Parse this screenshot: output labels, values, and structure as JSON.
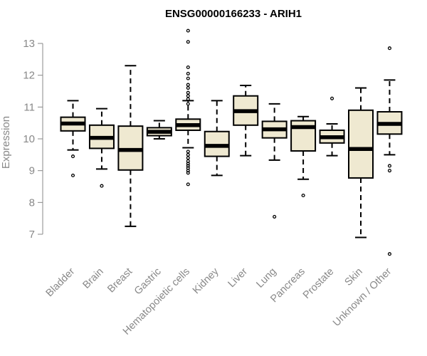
{
  "chart_data": {
    "type": "box",
    "title": "ENSG00000166233 - ARIH1",
    "xlabel": "",
    "ylabel": "Expression",
    "ylim": [
      6.6,
      13.6
    ],
    "yticks": [
      7,
      8,
      9,
      10,
      11,
      12,
      13
    ],
    "grid": false,
    "box_color": "#efe9d1",
    "categories": [
      "Bladder",
      "Brain",
      "Breast",
      "Gastric",
      "Hematopoietic cells",
      "Kidney",
      "Liver",
      "Lung",
      "Pancreas",
      "Prostate",
      "Skin",
      "Unknown / Other"
    ],
    "boxes": [
      {
        "name": "Bladder",
        "whisker_low": 9.65,
        "q1": 10.25,
        "median": 10.48,
        "q3": 10.68,
        "whisker_high": 11.2,
        "outliers": [
          9.45,
          8.85
        ]
      },
      {
        "name": "Brain",
        "whisker_low": 9.05,
        "q1": 9.7,
        "median": 10.03,
        "q3": 10.43,
        "whisker_high": 10.95,
        "outliers": [
          8.52
        ]
      },
      {
        "name": "Breast",
        "whisker_low": 7.25,
        "q1": 9.02,
        "median": 9.65,
        "q3": 10.4,
        "whisker_high": 12.3,
        "outliers": []
      },
      {
        "name": "Gastric",
        "whisker_low": 10.0,
        "q1": 10.1,
        "median": 10.22,
        "q3": 10.35,
        "whisker_high": 10.57,
        "outliers": []
      },
      {
        "name": "Hematopoietic cells",
        "whisker_low": 9.72,
        "q1": 10.27,
        "median": 10.43,
        "q3": 10.62,
        "whisker_high": 11.2,
        "outliers": [
          13.4,
          13.05,
          12.25,
          12.05,
          11.9,
          11.7,
          11.6,
          11.45,
          11.35,
          11.25,
          11.1,
          9.6,
          9.5,
          9.4,
          9.3,
          9.22,
          9.15,
          9.08,
          9.0,
          8.93,
          8.57
        ]
      },
      {
        "name": "Kidney",
        "whisker_low": 8.85,
        "q1": 9.45,
        "median": 9.78,
        "q3": 10.23,
        "whisker_high": 11.2,
        "outliers": []
      },
      {
        "name": "Liver",
        "whisker_low": 9.47,
        "q1": 10.43,
        "median": 10.87,
        "q3": 11.35,
        "whisker_high": 11.68,
        "outliers": []
      },
      {
        "name": "Lung",
        "whisker_low": 9.33,
        "q1": 10.03,
        "median": 10.3,
        "q3": 10.55,
        "whisker_high": 11.1,
        "outliers": [
          7.55
        ]
      },
      {
        "name": "Pancreas",
        "whisker_low": 8.73,
        "q1": 9.62,
        "median": 10.37,
        "q3": 10.57,
        "whisker_high": 10.7,
        "outliers": [
          8.22
        ]
      },
      {
        "name": "Prostate",
        "whisker_low": 9.47,
        "q1": 9.87,
        "median": 10.05,
        "q3": 10.27,
        "whisker_high": 10.47,
        "outliers": [
          11.27
        ]
      },
      {
        "name": "Skin",
        "whisker_low": 6.9,
        "q1": 8.77,
        "median": 9.68,
        "q3": 10.9,
        "whisker_high": 11.6,
        "outliers": []
      },
      {
        "name": "Unknown / Other",
        "whisker_low": 9.5,
        "q1": 10.15,
        "median": 10.47,
        "q3": 10.85,
        "whisker_high": 11.85,
        "outliers": [
          12.85,
          9.15,
          9.0,
          6.38
        ]
      }
    ]
  }
}
